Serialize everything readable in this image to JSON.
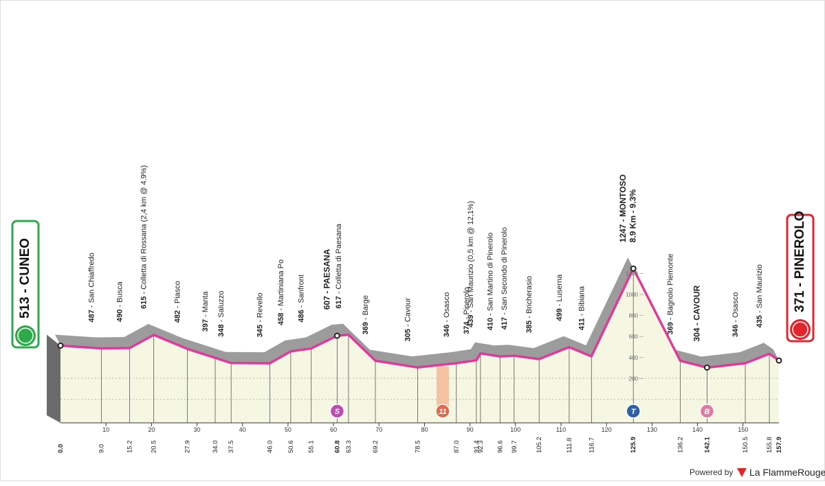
{
  "profile": {
    "start": {
      "alt": 513,
      "name": "CUNEO",
      "km": 0.0
    },
    "finish": {
      "alt": 371,
      "name": "PINEROLO",
      "km": 157.9
    },
    "separator": " - ",
    "waypoints": [
      {
        "alt": 487,
        "name": "San Chiaffredo",
        "km": 9.0
      },
      {
        "alt": 490,
        "name": "Busca",
        "km": 15.2
      },
      {
        "alt": 615,
        "name": "Colletta di Rossana (2,4 km @ 4.9%)",
        "km": 20.5
      },
      {
        "alt": 482,
        "name": "Piasco",
        "km": 27.9
      },
      {
        "alt": 397,
        "name": "Manta",
        "km": 34.0
      },
      {
        "alt": 348,
        "name": "Saluzzo",
        "km": 37.5
      },
      {
        "alt": 345,
        "name": "Revello",
        "km": 46.0
      },
      {
        "alt": 458,
        "name": "Martiniana Po",
        "km": 50.6
      },
      {
        "alt": 486,
        "name": "Sanfront",
        "km": 55.1
      },
      {
        "alt": 607,
        "name": "PAESANA",
        "km": 60.8,
        "bold": true
      },
      {
        "alt": 617,
        "name": "Colletta di Paesana",
        "km": 63.3
      },
      {
        "alt": 369,
        "name": "Barge",
        "km": 69.2
      },
      {
        "alt": 305,
        "name": "Cavour",
        "km": 78.5
      },
      {
        "alt": 346,
        "name": "Osasco",
        "km": 87.0
      },
      {
        "alt": 374,
        "name": "Pinerolo",
        "km": 91.4
      },
      {
        "alt": 439,
        "name": "San Maurizio (0,5 km @ 12,1%)",
        "km": 92.3
      },
      {
        "alt": 410,
        "name": "San Martino di Pinerolo",
        "km": 96.6
      },
      {
        "alt": 417,
        "name": "San Secondo di Pinerolo",
        "km": 99.7
      },
      {
        "alt": 385,
        "name": "Bricherasio",
        "km": 105.2
      },
      {
        "alt": 499,
        "name": "Luserna",
        "km": 111.8
      },
      {
        "alt": 411,
        "name": "Bibiana",
        "km": 116.7
      },
      {
        "alt": 1247,
        "name": "MONTOSO",
        "km": 125.9,
        "bold": true,
        "note": "8.9 Km - 9.3%"
      },
      {
        "alt": 369,
        "name": "Bagnolo Piemonte",
        "km": 136.2
      },
      {
        "alt": 304,
        "name": "CAVOUR",
        "km": 142.1,
        "bold": true
      },
      {
        "alt": 346,
        "name": "Osasco",
        "km": 150.5
      },
      {
        "alt": 435,
        "name": "San Maurizio",
        "km": 155.8
      }
    ],
    "km_ticks": [
      10,
      20,
      30,
      40,
      50,
      60,
      70,
      80,
      90,
      100,
      110,
      120,
      130,
      140,
      150
    ],
    "km_labels": [
      {
        "value": 0,
        "label": "0.0"
      },
      {
        "value": 9,
        "label": "9.0"
      },
      15.2,
      20.5,
      27.9,
      {
        "value": 34,
        "label": "34.0"
      },
      37.5,
      {
        "value": 46,
        "label": "46.0"
      },
      50.6,
      55.1,
      60.8,
      63.3,
      69.2,
      78.5,
      {
        "value": 87,
        "label": "87.0"
      },
      91.4,
      92.3,
      96.6,
      99.7,
      105.2,
      111.8,
      116.7,
      125.9,
      136.2,
      142.1,
      150.5,
      155.8,
      157.9
    ],
    "bold_km": [
      0,
      60.8,
      125.9,
      142.1,
      157.9
    ],
    "elevation_ticks": [
      200,
      400,
      600,
      800,
      1000,
      1200
    ],
    "icons": [
      {
        "km": 60.8,
        "label": "S",
        "color": "#c04bb3"
      },
      {
        "km": 84,
        "label": "11",
        "color": "#e06a4a"
      },
      {
        "km": 125.9,
        "label": "T",
        "color": "#2f5fa8"
      },
      {
        "km": 142.1,
        "label": "B",
        "color": "#e07aa2"
      }
    ]
  },
  "footer": {
    "powered": "Powered by",
    "brand": "La FlammeRouge"
  }
}
